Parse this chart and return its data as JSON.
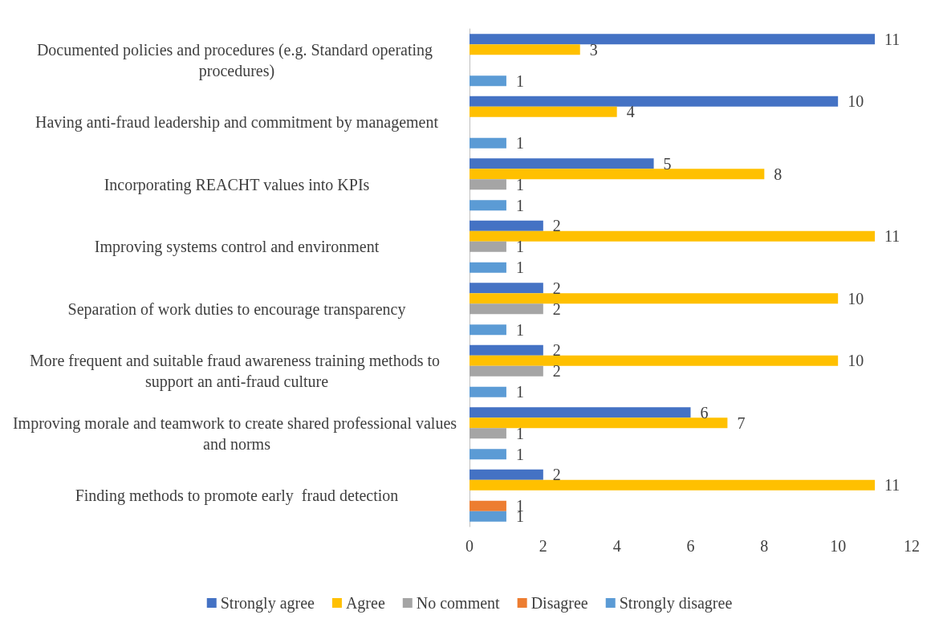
{
  "chart_data": {
    "type": "bar",
    "orientation": "horizontal",
    "categories": [
      "Documented policies and procedures (e.g. Standard operating procedures)",
      "Having anti-fraud leadership and commitment by management",
      "Incorporating REACHT values into KPIs",
      "Improving systems control and environment",
      "Separation of work duties to encourage transparency",
      "More frequent and suitable fraud awareness training methods to support an anti-fraud culture",
      "Improving morale and teamwork to create shared professional values and norms",
      "Finding methods to promote early  fraud detection"
    ],
    "series": [
      {
        "name": "Strongly agree",
        "color": "#4472c4",
        "values": [
          11,
          10,
          5,
          2,
          2,
          2,
          6,
          2
        ]
      },
      {
        "name": "Agree",
        "color": "#ffc000",
        "values": [
          3,
          4,
          8,
          11,
          10,
          10,
          7,
          11
        ]
      },
      {
        "name": "No comment",
        "color": "#a5a5a5",
        "values": [
          null,
          null,
          1,
          1,
          2,
          2,
          1,
          null
        ]
      },
      {
        "name": "Disagree",
        "color": "#ed7d31",
        "values": [
          null,
          null,
          null,
          null,
          null,
          null,
          null,
          1
        ]
      },
      {
        "name": "Strongly disagree",
        "color": "#5b9bd5",
        "values": [
          1,
          1,
          1,
          1,
          1,
          1,
          1,
          1
        ]
      }
    ],
    "xlim": [
      0,
      12
    ],
    "xticks": [
      0,
      2,
      4,
      6,
      8,
      10,
      12
    ],
    "data_labels": true,
    "grid": false,
    "legend": "bottom"
  }
}
